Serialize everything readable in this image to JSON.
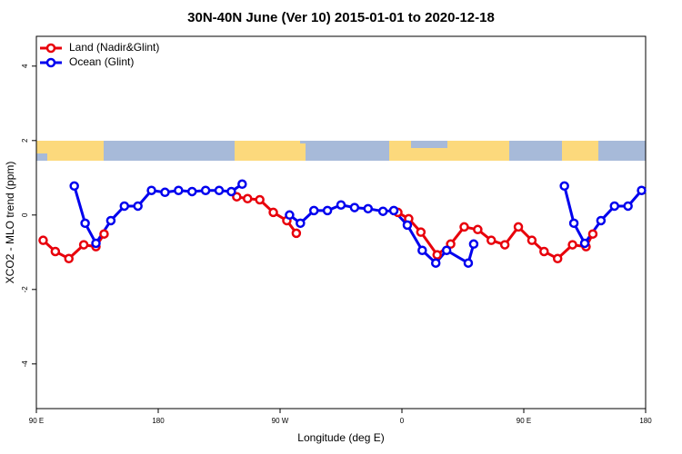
{
  "chart_data": {
    "type": "line",
    "title": "30N-40N June (Ver 10)   2015-01-01 to 2020-12-18",
    "x_label": "Longitude (deg E)",
    "y_label": "XCO2 - MLO trend (ppm)",
    "xlim": [
      90,
      540
    ],
    "xticks": [
      {
        "value": 90,
        "label": "90 E"
      },
      {
        "value": 180,
        "label": "180"
      },
      {
        "value": 270,
        "label": "90 W"
      },
      {
        "value": 360,
        "label": "0"
      },
      {
        "value": 450,
        "label": "90 E"
      },
      {
        "value": 540,
        "label": "180"
      }
    ],
    "ylim": [
      -5.2,
      4.8
    ],
    "yticks": [
      -4,
      -2,
      0,
      2,
      4
    ],
    "legend": "top-left",
    "series": [
      {
        "name": "Land (Nadir&Glint)",
        "color": "#e8000b",
        "x": [
          95,
          104,
          114,
          125,
          134,
          140,
          null,
          238,
          246,
          255,
          265,
          275,
          282,
          null,
          357,
          365,
          374,
          386,
          396,
          406,
          416,
          426,
          436,
          446,
          456,
          465,
          475,
          486,
          496,
          501
        ],
        "values": [
          -0.68,
          -0.98,
          -1.17,
          -0.8,
          -0.85,
          -0.51,
          null,
          0.49,
          0.44,
          0.41,
          0.07,
          -0.15,
          -0.49,
          null,
          0.07,
          -0.1,
          -0.46,
          -1.07,
          -0.78,
          -0.32,
          -0.39,
          -0.68,
          -0.8,
          -0.32,
          -0.68,
          -0.98,
          -1.17,
          -0.8,
          -0.85,
          -0.51
        ]
      },
      {
        "name": "Ocean (Glint)",
        "color": "#0000ee",
        "x": [
          118,
          126,
          134,
          145,
          155,
          165,
          175,
          185,
          195,
          205,
          215,
          225,
          234,
          242,
          null,
          277,
          285,
          295,
          305,
          315,
          325,
          335,
          346,
          354,
          364,
          375,
          385,
          393,
          409,
          413,
          null,
          480,
          487,
          495,
          507,
          517,
          527,
          537
        ],
        "values": [
          0.78,
          -0.22,
          -0.76,
          -0.15,
          0.24,
          0.24,
          0.66,
          0.61,
          0.66,
          0.63,
          0.66,
          0.66,
          0.63,
          0.83,
          null,
          0.0,
          -0.22,
          0.12,
          0.12,
          0.27,
          0.2,
          0.17,
          0.1,
          0.12,
          -0.27,
          -0.95,
          -1.29,
          -0.95,
          -1.29,
          -0.78,
          null,
          0.78,
          -0.22,
          -0.76,
          -0.15,
          0.24,
          0.24,
          0.66
        ]
      }
    ]
  }
}
